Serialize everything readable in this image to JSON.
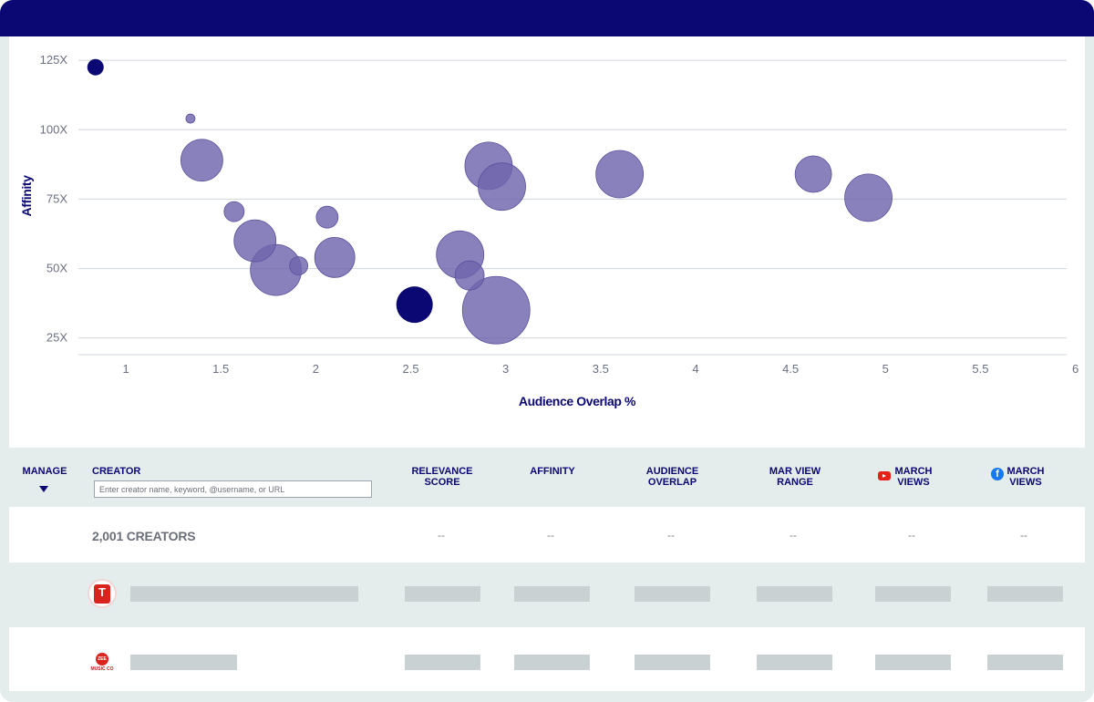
{
  "chart_data": {
    "type": "scatter",
    "xlabel": "Audience Overlap %",
    "ylabel": "Affinity",
    "x_ticks": [
      "1",
      "1.5",
      "2",
      "2.5",
      "3",
      "3.5",
      "4",
      "4.5",
      "5",
      "5.5",
      "6"
    ],
    "y_ticks": [
      "25X",
      "50X",
      "75X",
      "100X",
      "125X"
    ],
    "xlim": [
      0.75,
      6.05
    ],
    "ylim": [
      19,
      127
    ],
    "grid": "horizontal",
    "colors": {
      "bubble": "#6f65ad",
      "bubble_highlight": "#0c0873",
      "bubble_stroke": "#5a509c",
      "gridline": "#cfd4dc"
    },
    "points": [
      {
        "x": 0.84,
        "y": 122.5,
        "size": 9,
        "highlight": true
      },
      {
        "x": 1.34,
        "y": 104,
        "size": 5,
        "highlight": false
      },
      {
        "x": 1.4,
        "y": 89,
        "size": 23,
        "highlight": false
      },
      {
        "x": 1.57,
        "y": 70.5,
        "size": 11,
        "highlight": false
      },
      {
        "x": 1.68,
        "y": 60,
        "size": 23,
        "highlight": false
      },
      {
        "x": 1.79,
        "y": 49.5,
        "size": 28,
        "highlight": false
      },
      {
        "x": 1.91,
        "y": 51,
        "size": 10,
        "highlight": false
      },
      {
        "x": 2.06,
        "y": 68.5,
        "size": 12,
        "highlight": false
      },
      {
        "x": 2.1,
        "y": 54,
        "size": 22,
        "highlight": false
      },
      {
        "x": 2.52,
        "y": 37,
        "size": 20,
        "highlight": true
      },
      {
        "x": 2.76,
        "y": 55,
        "size": 26,
        "highlight": false
      },
      {
        "x": 2.81,
        "y": 47.5,
        "size": 16,
        "highlight": false
      },
      {
        "x": 2.91,
        "y": 87,
        "size": 26,
        "highlight": false
      },
      {
        "x": 2.98,
        "y": 79.5,
        "size": 26,
        "highlight": false
      },
      {
        "x": 2.95,
        "y": 35,
        "size": 37,
        "highlight": false
      },
      {
        "x": 3.6,
        "y": 84,
        "size": 26,
        "highlight": false
      },
      {
        "x": 4.62,
        "y": 84,
        "size": 20,
        "highlight": false
      },
      {
        "x": 4.91,
        "y": 75.5,
        "size": 26,
        "highlight": false
      }
    ]
  },
  "table": {
    "headers": {
      "manage": "MANAGE",
      "creator": "CREATOR",
      "relevance_1": "RELEVANCE",
      "relevance_2": "SCORE",
      "affinity": "AFFINITY",
      "overlap_1": "AUDIENCE",
      "overlap_2": "OVERLAP",
      "view_range_1": "MAR VIEW",
      "view_range_2": "RANGE",
      "yt_views_1": "MARCH",
      "yt_views_2": "VIEWS",
      "fb_views_1": "MARCH",
      "fb_views_2": "VIEWS"
    },
    "search_placeholder": "Enter creator name, keyword, @username, or URL",
    "count_label": "2,001 CREATORS",
    "empty_value": "--",
    "row1_logo_text": "T",
    "row2_logo_text": "ZEE",
    "row2_logo_sub": "MUSIC CO"
  }
}
